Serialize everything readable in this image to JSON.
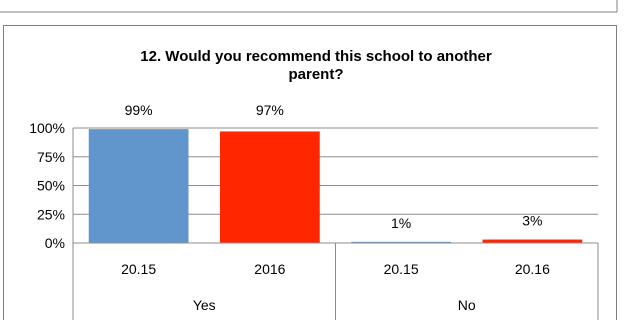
{
  "chart_data": {
    "type": "bar",
    "title_lines": [
      "12. Would you recommend this school to another",
      "parent?"
    ],
    "yticks": [
      "0%",
      "25%",
      "50%",
      "75%",
      "100%"
    ],
    "ylim": [
      0,
      100
    ],
    "grid": true,
    "bars": [
      {
        "sub": "20.15",
        "group": "Yes",
        "value": 99,
        "label": "99%",
        "color": "#6096CC"
      },
      {
        "sub": "2016",
        "group": "Yes",
        "value": 97,
        "label": "97%",
        "color": "#FF2600"
      },
      {
        "sub": "20.15",
        "group": "No",
        "value": 1,
        "label": "1%",
        "color": "#6096CC"
      },
      {
        "sub": "20.16",
        "group": "No",
        "value": 3,
        "label": "3%",
        "color": "#FF2600"
      }
    ],
    "groups": [
      "Yes",
      "No"
    ]
  }
}
